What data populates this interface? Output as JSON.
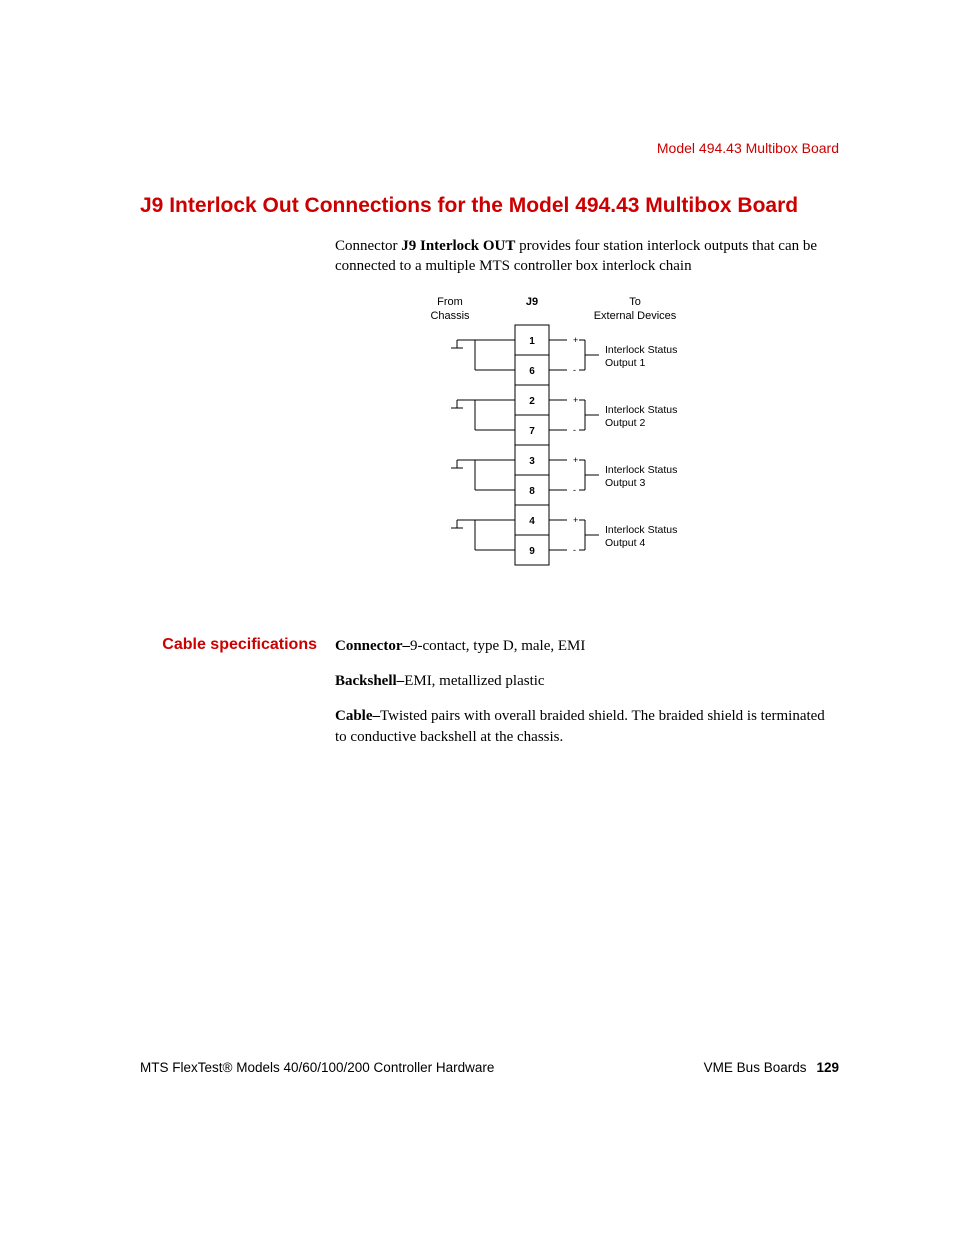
{
  "page": {
    "header_right": "Model 494.43 Multibox Board",
    "section_title": "J9 Interlock Out Connections for the Model 494.43 Multibox Board",
    "intro_prefix": "Connector ",
    "intro_bold": "J9 Interlock OUT",
    "intro_suffix": " provides four station interlock outputs that can be connected to a multiple MTS controller box interlock chain",
    "footer_left": "MTS FlexTest® Models 40/60/100/200 Controller Hardware",
    "footer_right_label": "VME Bus Boards",
    "page_number": "129"
  },
  "diagram": {
    "type": "connector-pinout",
    "left_header_line1": "From",
    "left_header_line2": "Chassis",
    "center_header": "J9",
    "right_header_line1": "To",
    "right_header_line2": "External Devices",
    "channels": [
      {
        "pin_pos": "1",
        "pin_neg": "6",
        "label_line1": "Interlock Status",
        "label_line2": "Output 1"
      },
      {
        "pin_pos": "2",
        "pin_neg": "7",
        "label_line1": "Interlock Status",
        "label_line2": "Output 2"
      },
      {
        "pin_pos": "3",
        "pin_neg": "8",
        "label_line1": "Interlock Status",
        "label_line2": "Output 3"
      },
      {
        "pin_pos": "4",
        "pin_neg": "9",
        "label_line1": "Interlock Status",
        "label_line2": "Output 4"
      }
    ],
    "colors": {
      "stroke": "#000000",
      "bg": "#ffffff"
    },
    "line_width": 1
  },
  "specs": {
    "heading": "Cable specifications",
    "rows": [
      {
        "label": "Connector",
        "sep": "–",
        "text": "9-contact, type D, male, EMI"
      },
      {
        "label": "Backshell",
        "sep": "–",
        "text": "EMI, metallized plastic"
      },
      {
        "label": "Cable",
        "sep": "–",
        "text": "Twisted pairs with overall braided shield. The braided shield is terminated to conductive backshell at the chassis."
      }
    ]
  }
}
